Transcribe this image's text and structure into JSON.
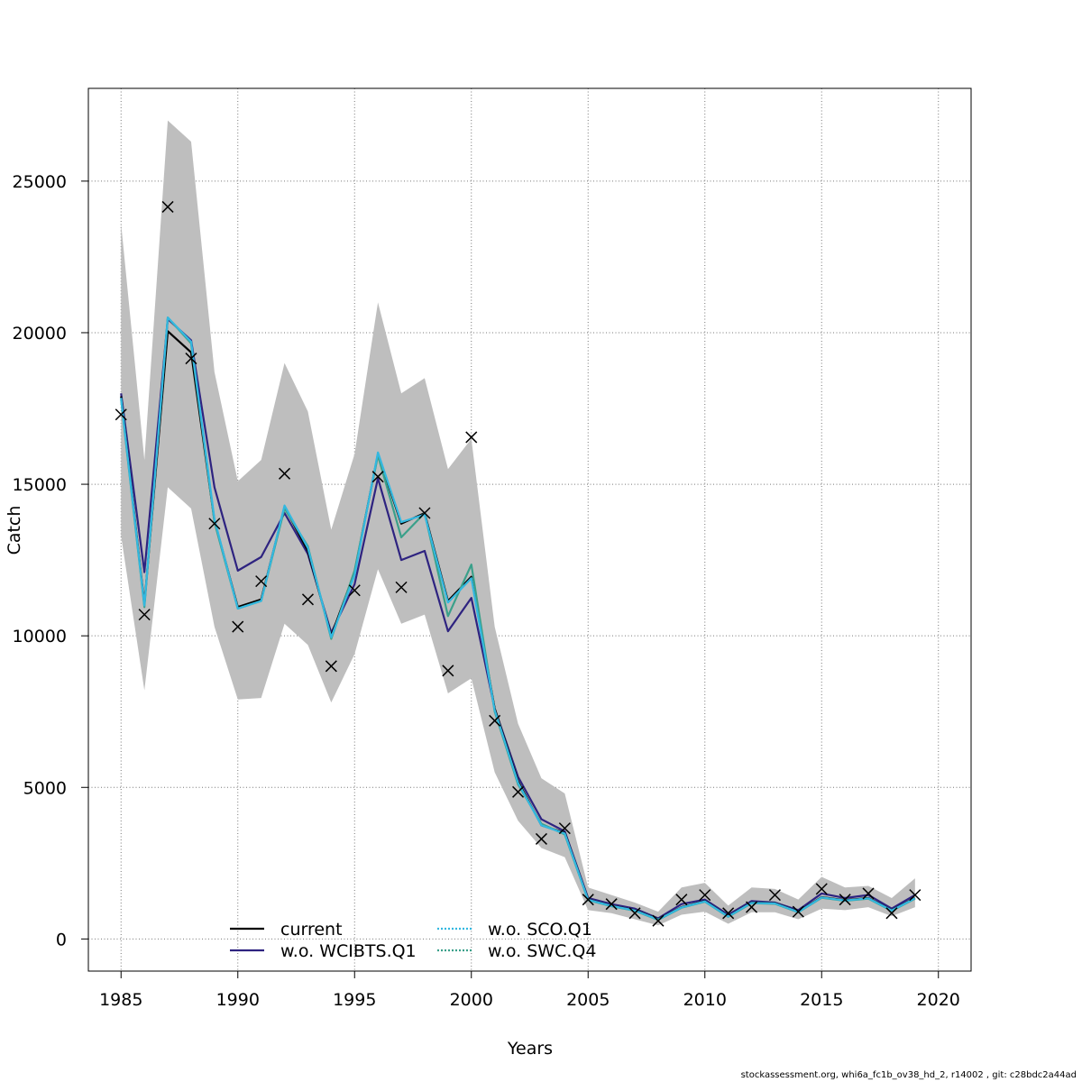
{
  "chart_data": {
    "type": "line",
    "xlabel": "Years",
    "ylabel": "Catch",
    "xlim": [
      1983.6,
      2021.4
    ],
    "ylim": [
      -1060,
      28060
    ],
    "xticks": [
      1985,
      1990,
      1995,
      2000,
      2005,
      2010,
      2015,
      2020
    ],
    "yticks": [
      0,
      5000,
      10000,
      15000,
      20000,
      25000
    ],
    "grid": true,
    "legend_position": "bottom-center",
    "colors": {
      "band": "#bebebe",
      "current": "#000000",
      "w.o. WCIBTS.Q1": "#2e2380",
      "w.o. SCO.Q1": "#33b8e0",
      "w.o. SWC.Q4": "#3aa08a",
      "observed": "#000000"
    },
    "x": [
      1985,
      1986,
      1987,
      1988,
      1989,
      1990,
      1991,
      1992,
      1993,
      1994,
      1995,
      1996,
      1997,
      1998,
      1999,
      2000,
      2001,
      2002,
      2003,
      2004,
      2005,
      2006,
      2007,
      2008,
      2009,
      2010,
      2011,
      2012,
      2013,
      2014,
      2015,
      2016,
      2017,
      2018,
      2019
    ],
    "band_upper": [
      23600,
      15800,
      27000,
      26300,
      18700,
      15100,
      15800,
      19000,
      17400,
      13500,
      16000,
      21000,
      18000,
      18500,
      15500,
      16500,
      10300,
      7100,
      5300,
      4800,
      1700,
      1450,
      1200,
      900,
      1700,
      1850,
      1100,
      1700,
      1650,
      1300,
      2050,
      1700,
      1750,
      1350,
      2000
    ],
    "band_lower": [
      13300,
      8200,
      14900,
      14200,
      10300,
      7900,
      7950,
      10400,
      9700,
      7800,
      9400,
      12200,
      10400,
      10700,
      8100,
      8600,
      5500,
      3900,
      3000,
      2700,
      950,
      850,
      650,
      450,
      800,
      900,
      500,
      880,
      880,
      650,
      1000,
      950,
      1050,
      750,
      1050
    ],
    "series": [
      {
        "name": "current",
        "values": [
          17900,
          11050,
          20050,
          19350,
          13800,
          10950,
          11200,
          14250,
          12800,
          10000,
          12100,
          16000,
          13700,
          14050,
          11150,
          11950,
          7600,
          5200,
          3750,
          3500,
          1300,
          1100,
          950,
          650,
          1050,
          1250,
          750,
          1200,
          1180,
          900,
          1380,
          1280,
          1350,
          950,
          1350
        ]
      },
      {
        "name": "w.o. WCIBTS.Q1",
        "values": [
          18000,
          12100,
          20450,
          19750,
          14900,
          12150,
          12600,
          14050,
          12700,
          10100,
          11700,
          15200,
          12500,
          12800,
          10150,
          11250,
          7600,
          5350,
          3950,
          3550,
          1350,
          1150,
          1000,
          680,
          1150,
          1300,
          800,
          1250,
          1200,
          950,
          1500,
          1350,
          1450,
          1000,
          1450
        ]
      },
      {
        "name": "w.o. SCO.Q1",
        "values": [
          17850,
          11000,
          20500,
          19700,
          13850,
          10900,
          11150,
          14300,
          12900,
          9950,
          12000,
          16050,
          13750,
          14000,
          11100,
          11900,
          7550,
          5150,
          3750,
          3480,
          1290,
          1090,
          940,
          640,
          1040,
          1240,
          740,
          1190,
          1170,
          890,
          1370,
          1270,
          1340,
          940,
          1340
        ]
      },
      {
        "name": "w.o. SWC.Q4",
        "values": [
          17800,
          10950,
          20500,
          19650,
          13750,
          10900,
          11150,
          14200,
          12950,
          9900,
          12150,
          15950,
          13250,
          14050,
          10650,
          12350,
          7500,
          5100,
          3800,
          3450,
          1280,
          1080,
          930,
          630,
          1030,
          1230,
          730,
          1180,
          1160,
          880,
          1360,
          1260,
          1330,
          930,
          1330
        ]
      }
    ],
    "observed": {
      "name": "observed",
      "marker": "x",
      "values": [
        17300,
        10700,
        24150,
        19150,
        13700,
        10300,
        11800,
        15350,
        11200,
        9000,
        11500,
        15250,
        11600,
        14050,
        8850,
        16550,
        7200,
        4850,
        3300,
        3650,
        1300,
        1150,
        850,
        600,
        1300,
        1450,
        850,
        1050,
        1450,
        900,
        1650,
        1300,
        1500,
        850,
        1450
      ]
    },
    "legend": [
      {
        "label": "current",
        "style": "solid",
        "color": "#000000"
      },
      {
        "label": "w.o. WCIBTS.Q1",
        "style": "solid",
        "color": "#2e2380"
      },
      {
        "label": "w.o. SCO.Q1",
        "style": "dotted",
        "color": "#33b8e0"
      },
      {
        "label": "w.o. SWC.Q4",
        "style": "dotted",
        "color": "#3aa08a"
      }
    ]
  },
  "footer": "stockassessment.org, whi6a_fc1b_ov38_hd_2, r14002 , git: c28bdc2a44ad"
}
